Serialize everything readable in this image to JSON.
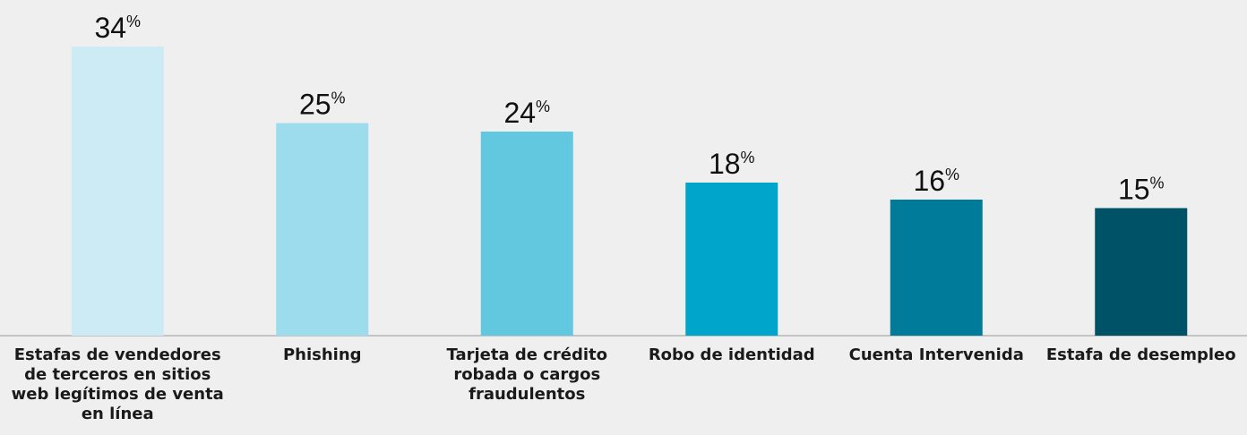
{
  "chart_data": {
    "type": "bar",
    "categories": [
      "Estafas de vendedores de terceros en sitios web legítimos de venta en línea",
      "Phishing",
      "Tarjeta de crédito robada o cargos fraudulentos",
      "Robo de identidad",
      "Cuenta Intervenida",
      "Estafa de desempleo"
    ],
    "values": [
      34,
      25,
      24,
      18,
      16,
      15
    ],
    "value_labels": [
      "34%",
      "25%",
      "24%",
      "18%",
      "16%",
      "15%"
    ],
    "colors": [
      "#cdebf4",
      "#9cdcec",
      "#62c8df",
      "#00a5cb",
      "#007b99",
      "#005366"
    ]
  }
}
